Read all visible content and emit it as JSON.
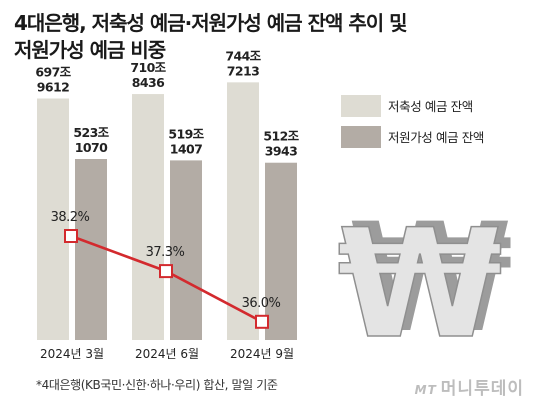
{
  "title_lines": [
    "4대은행, 저축성 예금·저원가성 예금 잔액 추이 및",
    "저원가성 예금 비중"
  ],
  "footnote": "*4대은행(KB국민·신한·하나·우리) 합산, 말일 기준",
  "brand": {
    "mark": "MT",
    "name": "머니투데이"
  },
  "currency_symbol": "₩",
  "colors": {
    "savings_bar": "#dedcd3",
    "low_cost_bar": "#b3aca5",
    "line": "#d32a2e",
    "marker_fill": "#ffffff"
  },
  "chart_data": {
    "type": "bar",
    "categories": [
      "2024년 3월",
      "2024년 6월",
      "2024년 9월"
    ],
    "series": [
      {
        "name": "저축성 예금 잔액",
        "values": [
          697.9612,
          710.8436,
          744.7213
        ],
        "labels": [
          [
            "697조",
            "9612"
          ],
          [
            "710조",
            "8436"
          ],
          [
            "744조",
            "7213"
          ]
        ]
      },
      {
        "name": "저원가성 예금 잔액",
        "values": [
          523.107,
          519.1407,
          512.3943
        ],
        "labels": [
          [
            "523조",
            "1070"
          ],
          [
            "519조",
            "1407"
          ],
          [
            "512조",
            "3943"
          ]
        ]
      }
    ],
    "ratio_line": {
      "values": [
        38.2,
        37.3,
        36.0
      ],
      "labels": [
        "38.2%",
        "37.3%",
        "36.0%"
      ]
    },
    "legend_position": "top-right"
  }
}
